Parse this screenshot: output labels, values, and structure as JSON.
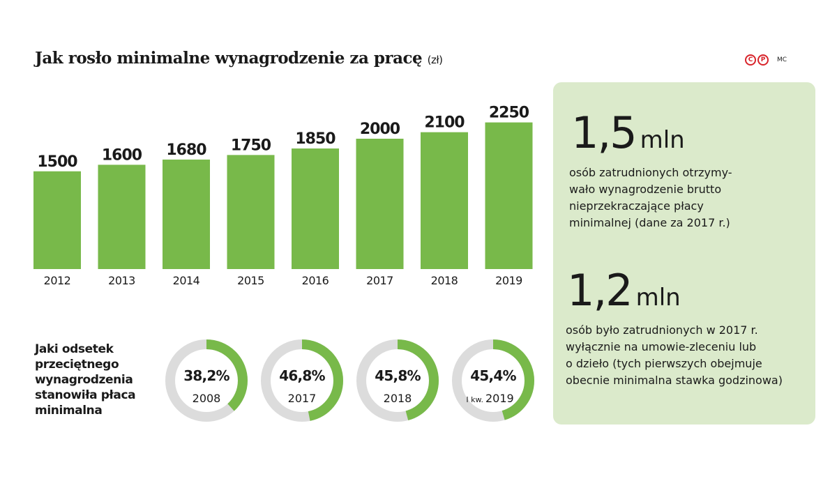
{
  "title": "Jak rosło minimalne wynagrodzenie za pracę",
  "title_unit": "(zł)",
  "credit": "MC",
  "logo_letters": [
    "C",
    "P"
  ],
  "colors": {
    "bar": "#78b94a",
    "ring_bg": "#dcdcdc",
    "panel": "#dbeacb",
    "logo": "#d8232a"
  },
  "chart_data": [
    {
      "type": "bar",
      "categories": [
        "2012",
        "2013",
        "2014",
        "2015",
        "2016",
        "2017",
        "2018",
        "2019"
      ],
      "values": [
        1500,
        1600,
        1680,
        1750,
        1850,
        2000,
        2100,
        2250
      ],
      "title": "Jak rosło minimalne wynagrodzenie za pracę",
      "ylabel": "",
      "xlabel": "",
      "ylim": [
        0,
        2250
      ],
      "grid": false,
      "legend": "none"
    },
    {
      "type": "pie",
      "title": "Jaki odsetek przeciętnego wynagrodzenia stanowiła płaca minimalna",
      "items": [
        {
          "label": "38,2%",
          "value": 38.2,
          "year": "2008",
          "prefix": ""
        },
        {
          "label": "46,8%",
          "value": 46.8,
          "year": "2017",
          "prefix": ""
        },
        {
          "label": "45,8%",
          "value": 45.8,
          "year": "2018",
          "prefix": ""
        },
        {
          "label": "45,4%",
          "value": 45.4,
          "year": "2019",
          "prefix": "I kw."
        }
      ]
    }
  ],
  "share_label_lines": [
    "Jaki odsetek",
    "przeciętnego",
    "wynagrodzenia",
    "stanowiła płaca",
    "minimalna"
  ],
  "stats": [
    {
      "number": "1,5",
      "unit": "mln",
      "desc_lines": [
        "osób zatrudnionych otrzymy-",
        "wało wynagrodzenie brutto",
        "nieprzekraczające płacy",
        "minimalnej (dane za 2017 r.)"
      ]
    },
    {
      "number": "1,2",
      "unit": "mln",
      "desc_lines": [
        "osób było zatrudnionych w 2017 r.",
        "wyłącznie na umowie-zleceniu lub",
        "o dzieło (tych pierwszych obejmuje",
        "obecnie minimalna stawka godzinowa)"
      ]
    }
  ]
}
